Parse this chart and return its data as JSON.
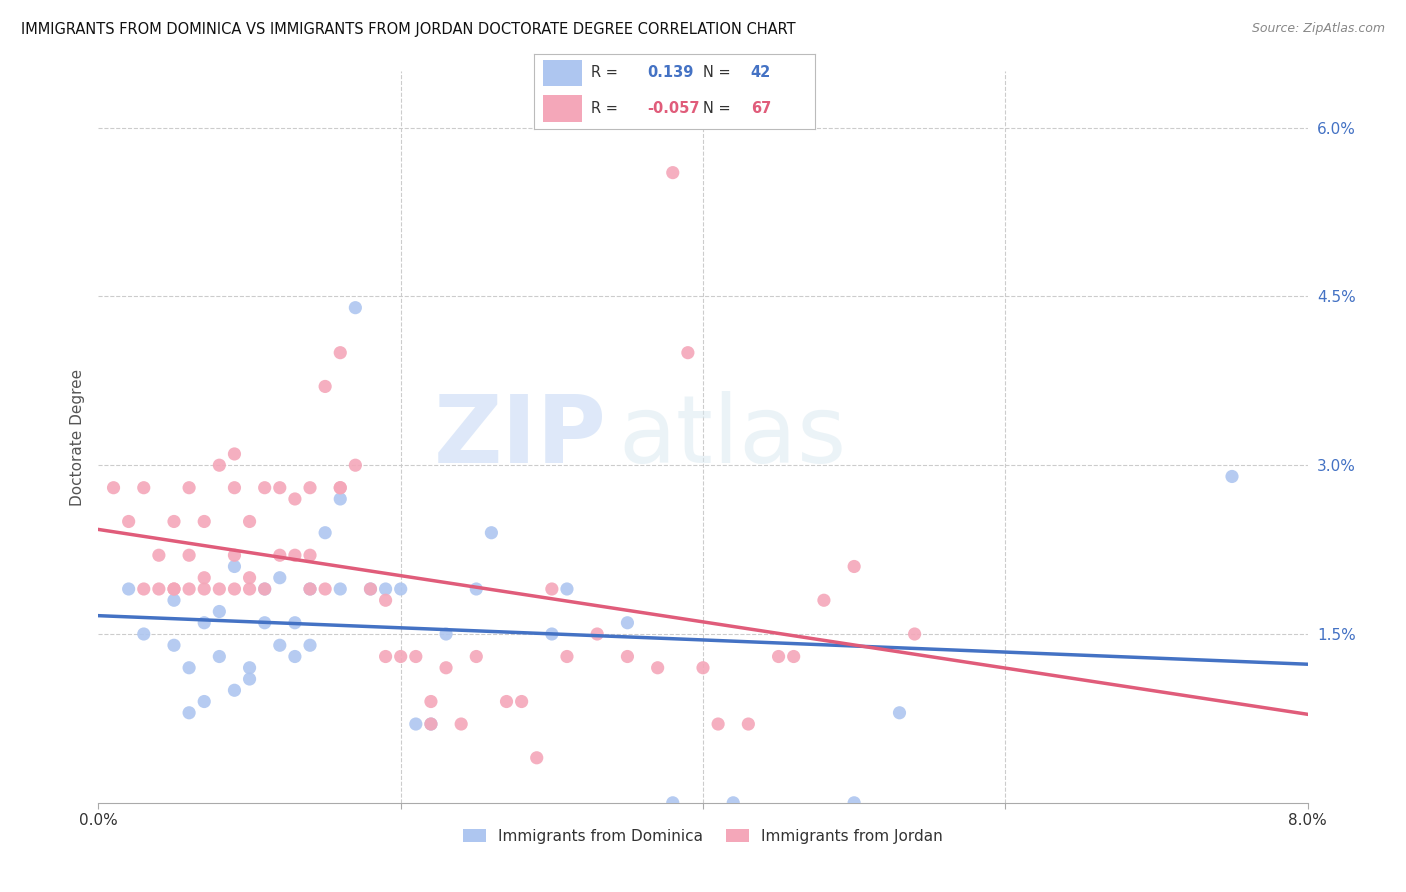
{
  "title": "IMMIGRANTS FROM DOMINICA VS IMMIGRANTS FROM JORDAN DOCTORATE DEGREE CORRELATION CHART",
  "source": "Source: ZipAtlas.com",
  "ylabel": "Doctorate Degree",
  "yticks": [
    "1.5%",
    "3.0%",
    "4.5%",
    "6.0%"
  ],
  "ytick_vals": [
    0.015,
    0.03,
    0.045,
    0.06
  ],
  "xlim": [
    0.0,
    0.08
  ],
  "ylim": [
    0.0,
    0.065
  ],
  "dominica_color": "#aec6f0",
  "jordan_color": "#f4a7b9",
  "dominica_line_color": "#4472c4",
  "jordan_line_color": "#e05c7a",
  "R_dominica": 0.139,
  "N_dominica": 42,
  "R_jordan": -0.057,
  "N_jordan": 67,
  "legend_label_dominica": "Immigrants from Dominica",
  "legend_label_jordan": "Immigrants from Jordan",
  "watermark_zip": "ZIP",
  "watermark_atlas": "atlas",
  "dominica_x": [
    0.002,
    0.003,
    0.005,
    0.005,
    0.006,
    0.006,
    0.007,
    0.007,
    0.008,
    0.008,
    0.009,
    0.009,
    0.01,
    0.01,
    0.011,
    0.011,
    0.012,
    0.012,
    0.013,
    0.013,
    0.014,
    0.014,
    0.015,
    0.016,
    0.016,
    0.017,
    0.018,
    0.019,
    0.02,
    0.021,
    0.022,
    0.023,
    0.025,
    0.026,
    0.03,
    0.031,
    0.035,
    0.038,
    0.042,
    0.05,
    0.053,
    0.075
  ],
  "dominica_y": [
    0.019,
    0.015,
    0.014,
    0.018,
    0.012,
    0.008,
    0.016,
    0.009,
    0.017,
    0.013,
    0.021,
    0.01,
    0.012,
    0.011,
    0.016,
    0.019,
    0.014,
    0.02,
    0.013,
    0.016,
    0.014,
    0.019,
    0.024,
    0.019,
    0.027,
    0.044,
    0.019,
    0.019,
    0.019,
    0.007,
    0.007,
    0.015,
    0.019,
    0.024,
    0.015,
    0.019,
    0.016,
    0.0,
    0.0,
    0.0,
    0.008,
    0.029
  ],
  "jordan_x": [
    0.001,
    0.002,
    0.003,
    0.003,
    0.004,
    0.004,
    0.005,
    0.005,
    0.005,
    0.006,
    0.006,
    0.006,
    0.007,
    0.007,
    0.007,
    0.008,
    0.008,
    0.009,
    0.009,
    0.009,
    0.009,
    0.01,
    0.01,
    0.01,
    0.011,
    0.011,
    0.012,
    0.012,
    0.013,
    0.013,
    0.014,
    0.014,
    0.014,
    0.015,
    0.015,
    0.016,
    0.016,
    0.016,
    0.017,
    0.018,
    0.019,
    0.019,
    0.02,
    0.021,
    0.022,
    0.022,
    0.023,
    0.024,
    0.025,
    0.027,
    0.028,
    0.029,
    0.03,
    0.031,
    0.033,
    0.035,
    0.037,
    0.038,
    0.039,
    0.04,
    0.041,
    0.043,
    0.045,
    0.046,
    0.048,
    0.05,
    0.054
  ],
  "jordan_y": [
    0.028,
    0.025,
    0.019,
    0.028,
    0.019,
    0.022,
    0.019,
    0.019,
    0.025,
    0.019,
    0.022,
    0.028,
    0.019,
    0.02,
    0.025,
    0.019,
    0.03,
    0.019,
    0.022,
    0.028,
    0.031,
    0.019,
    0.02,
    0.025,
    0.019,
    0.028,
    0.022,
    0.028,
    0.022,
    0.027,
    0.019,
    0.022,
    0.028,
    0.019,
    0.037,
    0.028,
    0.028,
    0.04,
    0.03,
    0.019,
    0.013,
    0.018,
    0.013,
    0.013,
    0.007,
    0.009,
    0.012,
    0.007,
    0.013,
    0.009,
    0.009,
    0.004,
    0.019,
    0.013,
    0.015,
    0.013,
    0.012,
    0.056,
    0.04,
    0.012,
    0.007,
    0.007,
    0.013,
    0.013,
    0.018,
    0.021,
    0.015
  ]
}
